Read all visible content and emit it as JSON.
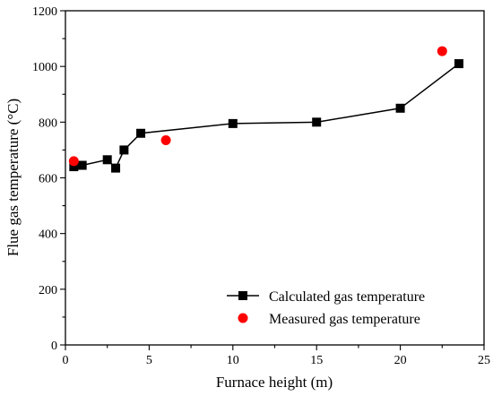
{
  "chart_data": {
    "type": "line",
    "title": "",
    "xlabel": "Furnace height (m)",
    "ylabel": "Flue gas temperature (°C)",
    "xlim": [
      0,
      25
    ],
    "ylim": [
      0,
      1200
    ],
    "xticks": [
      0,
      5,
      10,
      15,
      20,
      25
    ],
    "yticks": [
      0,
      200,
      400,
      600,
      800,
      1000,
      1200
    ],
    "x_tick_labels": [
      "0",
      "5",
      "10",
      "15",
      "20",
      "25"
    ],
    "y_tick_labels": [
      "0",
      "200",
      "400",
      "600",
      "800",
      "1000",
      "1200"
    ],
    "grid": false,
    "legend_position": "bottom-right",
    "series": [
      {
        "name": "Calculated gas temperature",
        "kind": "line-marker",
        "marker": "square",
        "color": "#000000",
        "x": [
          0.5,
          1.0,
          2.5,
          3.0,
          3.5,
          4.5,
          10,
          15,
          20,
          23.5
        ],
        "y": [
          640,
          645,
          665,
          635,
          700,
          760,
          795,
          800,
          850,
          1010
        ]
      },
      {
        "name": "Measured gas temperature",
        "kind": "scatter",
        "marker": "circle",
        "color": "#ff0000",
        "x": [
          0.5,
          6.0,
          22.5
        ],
        "y": [
          660,
          735,
          1055
        ]
      }
    ]
  }
}
